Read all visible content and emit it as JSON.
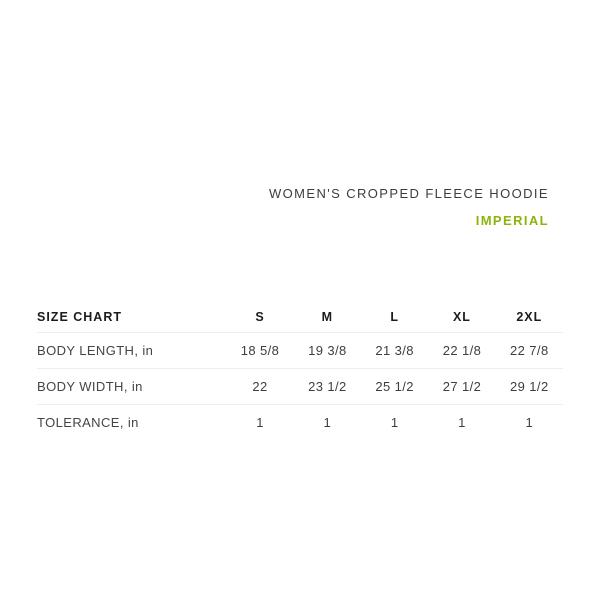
{
  "product": {
    "title": "WOMEN'S CROPPED FLEECE HOODIE",
    "units_label": "IMPERIAL"
  },
  "colors": {
    "accent_green": "#8CB40F",
    "header_text": "#1C1C1C",
    "body_text": "#454545",
    "divider": "#EDEDED",
    "background": "#FFFFFF"
  },
  "size_chart": {
    "heading": "SIZE CHART",
    "columns": [
      "S",
      "M",
      "L",
      "XL",
      "2XL"
    ],
    "rows": [
      {
        "label": "BODY LENGTH, in",
        "values": [
          "18 5/8",
          "19 3/8",
          "21 3/8",
          "22 1/8",
          "22 7/8"
        ]
      },
      {
        "label": "BODY WIDTH, in",
        "values": [
          "22",
          "23 1/2",
          "25 1/2",
          "27 1/2",
          "29 1/2"
        ]
      },
      {
        "label": "TOLERANCE, in",
        "values": [
          "1",
          "1",
          "1",
          "1",
          "1"
        ]
      }
    ]
  }
}
